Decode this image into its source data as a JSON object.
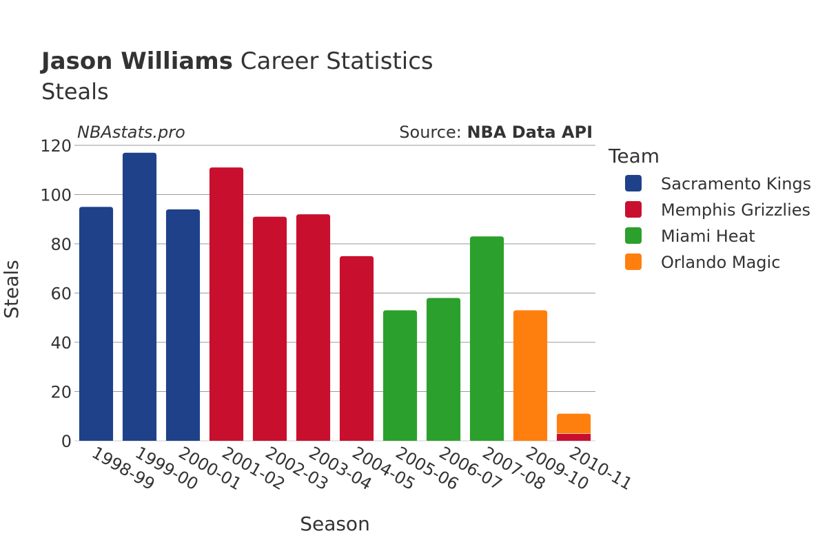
{
  "chart_data": {
    "type": "bar",
    "title_bold": "Jason Williams",
    "title_rest": " Career Statistics",
    "subtitle": "Steals",
    "watermark": "NBAstats.pro",
    "source_prefix": "Source: ",
    "source_name": "NBA Data API",
    "xlabel": "Season",
    "ylabel": "Steals",
    "ylim": [
      0,
      120
    ],
    "yticks": [
      0,
      20,
      40,
      60,
      80,
      100,
      120
    ],
    "legend_title": "Team",
    "legend_position": "right",
    "categories": [
      "1998-99",
      "1999-00",
      "2000-01",
      "2001-02",
      "2002-03",
      "2003-04",
      "2004-05",
      "2005-06",
      "2006-07",
      "2007-08",
      "2009-10",
      "2010-11"
    ],
    "series": [
      {
        "name": "Sacramento Kings",
        "color": "#1f418a",
        "values": [
          95,
          117,
          94,
          0,
          0,
          0,
          0,
          0,
          0,
          0,
          0,
          0
        ]
      },
      {
        "name": "Memphis Grizzlies",
        "color": "#c8102e",
        "values": [
          0,
          0,
          0,
          111,
          91,
          92,
          75,
          0,
          0,
          0,
          0,
          3
        ]
      },
      {
        "name": "Miami Heat",
        "color": "#2ca02c",
        "values": [
          0,
          0,
          0,
          0,
          0,
          0,
          0,
          53,
          58,
          83,
          0,
          0
        ]
      },
      {
        "name": "Orlando Magic",
        "color": "#ff7f0e",
        "values": [
          0,
          0,
          0,
          0,
          0,
          0,
          0,
          0,
          0,
          0,
          53,
          8
        ]
      }
    ]
  }
}
